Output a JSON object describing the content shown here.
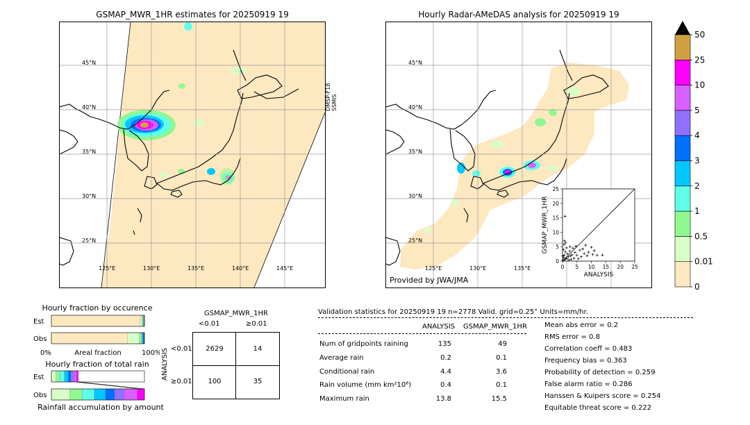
{
  "left_map": {
    "title": "GSMAP_MWR_1HR estimates for 20250919 19",
    "satellite_label": "DMSP-F18\nSSMIS",
    "lat_labels": [
      "45°N",
      "40°N",
      "35°N",
      "30°N",
      "25°N"
    ],
    "lon_labels": [
      "125°E",
      "130°E",
      "135°E",
      "140°E",
      "145°E"
    ]
  },
  "right_map": {
    "title": "Hourly Radar-AMeDAS analysis for 20250919 19",
    "credit": "Provided by JWA/JMA",
    "lat_labels": [
      "45°N",
      "40°N",
      "35°N",
      "30°N",
      "25°N"
    ],
    "lon_labels": [
      "125°E",
      "130°E",
      "135°E"
    ]
  },
  "colorbar": {
    "labels": [
      "0",
      "0.01",
      "0.5",
      "1",
      "2",
      "3",
      "4",
      "5",
      "10",
      "25",
      "50"
    ],
    "colors": [
      "#fde8c0",
      "#d8ffc8",
      "#90f890",
      "#60ffe8",
      "#00c8ff",
      "#0070ff",
      "#9070ff",
      "#d860ff",
      "#ff00ff",
      "#d0a040"
    ],
    "extend_color": "#000000"
  },
  "chart_data": [
    {
      "type": "scatter",
      "title": "",
      "xlabel": "ANALYSIS",
      "ylabel": "GSMAP_MWR_1HR",
      "xlim": [
        0,
        25
      ],
      "ylim": [
        0,
        25
      ],
      "xticks": [
        "0",
        "5",
        "10",
        "15",
        "20",
        "25"
      ],
      "yticks": [
        "0",
        "5",
        "10",
        "15",
        "20",
        "25"
      ],
      "points": [
        [
          0.2,
          0.3
        ],
        [
          0.4,
          1.2
        ],
        [
          0.6,
          2.1
        ],
        [
          0.8,
          0.5
        ],
        [
          1.0,
          3.2
        ],
        [
          1.2,
          1.0
        ],
        [
          1.5,
          0.8
        ],
        [
          1.7,
          2.5
        ],
        [
          2.0,
          1.5
        ],
        [
          2.2,
          0.4
        ],
        [
          2.5,
          3.5
        ],
        [
          2.8,
          1.8
        ],
        [
          3.0,
          0.6
        ],
        [
          3.3,
          2.2
        ],
        [
          3.6,
          4.5
        ],
        [
          4.0,
          1.0
        ],
        [
          4.3,
          3.0
        ],
        [
          4.6,
          5.2
        ],
        [
          5.0,
          2.0
        ],
        [
          5.5,
          0.8
        ],
        [
          6.0,
          3.8
        ],
        [
          6.5,
          1.5
        ],
        [
          7.0,
          4.2
        ],
        [
          7.5,
          2.6
        ],
        [
          8.0,
          5.5
        ],
        [
          8.5,
          1.9
        ],
        [
          9.0,
          3.1
        ],
        [
          10.0,
          4.8
        ],
        [
          10.5,
          2.3
        ],
        [
          11.0,
          3.6
        ],
        [
          12.0,
          2.0
        ],
        [
          13.8,
          2.1
        ],
        [
          0.3,
          4.0
        ],
        [
          0.5,
          5.8
        ],
        [
          1.1,
          6.3
        ],
        [
          0.9,
          15.5
        ],
        [
          0.1,
          1.8
        ],
        [
          1.4,
          4.6
        ],
        [
          2.6,
          5.0
        ],
        [
          0.7,
          7.0
        ]
      ]
    },
    {
      "type": "bar",
      "title": "Hourly fraction by occurence",
      "xlabel": "Areal fraction",
      "x_left_label": "0%",
      "x_right_label": "100%",
      "categories": [
        "Est",
        "Obs"
      ],
      "series": [
        {
          "color": "#fde8c0",
          "values": [
            0.955,
            0.815
          ]
        },
        {
          "color": "#d8ffc8",
          "values": [
            0.02,
            0.13
          ]
        },
        {
          "color": "#90f890",
          "values": [
            0.01,
            0.02
          ]
        },
        {
          "color": "#60ffe8",
          "values": [
            0.005,
            0.01
          ]
        },
        {
          "color": "#00c8ff",
          "values": [
            0.005,
            0.01
          ]
        },
        {
          "color": "#0070ff",
          "values": [
            0.003,
            0.01
          ]
        },
        {
          "color": "#000000",
          "values": [
            0.002,
            0.005
          ]
        }
      ]
    },
    {
      "type": "bar",
      "title": "Hourly fraction of total rain",
      "xlabel": "Rainfall accumulation by amount",
      "categories": [
        "Est",
        "Obs"
      ],
      "series": [
        {
          "color": "#d8ffc8",
          "values": [
            0.05,
            0.2
          ]
        },
        {
          "color": "#90f890",
          "values": [
            0.04,
            0.13
          ]
        },
        {
          "color": "#60ffe8",
          "values": [
            0.05,
            0.13
          ]
        },
        {
          "color": "#00c8ff",
          "values": [
            0.04,
            0.12
          ]
        },
        {
          "color": "#0070ff",
          "values": [
            0.03,
            0.1
          ]
        },
        {
          "color": "#9070ff",
          "values": [
            0.03,
            0.1
          ]
        },
        {
          "color": "#d860ff",
          "values": [
            0.03,
            0.14
          ]
        },
        {
          "color": "#ff00ff",
          "values": [
            0.02,
            0.08
          ]
        }
      ]
    },
    {
      "type": "table",
      "title": "GSMAP_MWR_1HR",
      "col_labels": [
        "<0.01",
        "≥0.01"
      ],
      "row_axis_label": "ANALYSIS",
      "row_labels": [
        "<0.01",
        "≥0.01"
      ],
      "cells": [
        [
          "2629",
          "14"
        ],
        [
          "100",
          "35"
        ]
      ]
    }
  ],
  "validation": {
    "header": "Validation statistics for 20250919 19  n=2778 Valid. grid=0.25° Units=mm/hr.",
    "col_analysis": "ANALYSIS",
    "col_gsmap": "GSMAP_MWR_1HR",
    "rows": [
      {
        "label": "Num of gridpoints raining",
        "analysis": "135",
        "gsmap": "49"
      },
      {
        "label": "Average rain",
        "analysis": "0.2",
        "gsmap": "0.1"
      },
      {
        "label": "Conditional rain",
        "analysis": "4.4",
        "gsmap": "3.6"
      },
      {
        "label": "Rain volume (mm km²10⁶)",
        "analysis": "0.4",
        "gsmap": "0.1"
      },
      {
        "label": "Maximum rain",
        "analysis": "13.8",
        "gsmap": "15.5"
      }
    ],
    "scores": [
      "Mean abs error =    0.2",
      "RMS error =    0.8",
      "Correlation coeff =  0.483",
      "Frequency bias =  0.363",
      "Probability of detection =  0.259",
      "False alarm ratio =  0.286",
      "Hanssen & Kuipers score =  0.254",
      "Equitable threat score =  0.222"
    ]
  }
}
